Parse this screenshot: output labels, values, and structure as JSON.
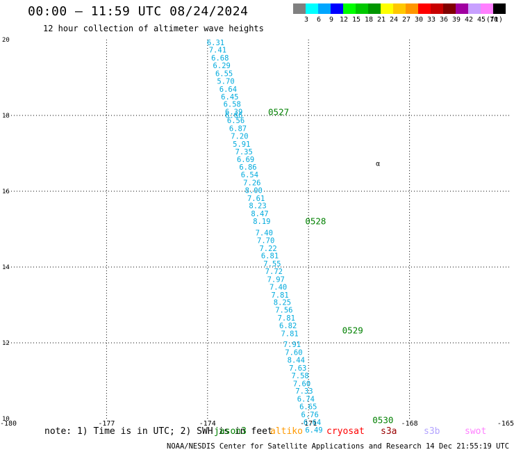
{
  "header": {
    "title": "00:00 – 11:59 UTC 08/24/2024",
    "subtitle": "12 hour collection of altimeter wave heights"
  },
  "colors": {
    "swh_label": "#00aadd",
    "time_label": "#008000",
    "grid": "#000000"
  },
  "color_scale": {
    "unit": "(ft)",
    "bins": [
      {
        "label": "3",
        "color": "#808080"
      },
      {
        "label": "6",
        "color": "#00ffff"
      },
      {
        "label": "9",
        "color": "#00a6ff"
      },
      {
        "label": "12",
        "color": "#0000ff"
      },
      {
        "label": "15",
        "color": "#00ff00"
      },
      {
        "label": "18",
        "color": "#00c800"
      },
      {
        "label": "21",
        "color": "#009600"
      },
      {
        "label": "24",
        "color": "#ffff00"
      },
      {
        "label": "27",
        "color": "#ffc800"
      },
      {
        "label": "30",
        "color": "#ff9600"
      },
      {
        "label": "33",
        "color": "#ff0000"
      },
      {
        "label": "36",
        "color": "#c80000"
      },
      {
        "label": "39",
        "color": "#800000"
      },
      {
        "label": "42",
        "color": "#a000a0"
      },
      {
        "label": "45",
        "color": "#c8a0ff"
      },
      {
        "label": "70",
        "color": "#ff80ff"
      },
      {
        "label": "",
        "color": "#000000"
      }
    ]
  },
  "chart_data": {
    "type": "scatter",
    "xlim": [
      -180,
      -165
    ],
    "ylim": [
      10,
      20
    ],
    "xticks": [
      "-180",
      "-177",
      "-174",
      "-171",
      "-168",
      "-165"
    ],
    "xtick_values": [
      -180,
      -177,
      -174,
      -171,
      -168,
      -165
    ],
    "yticks": [
      "10",
      "12",
      "14",
      "16",
      "18",
      "20"
    ],
    "ytick_values": [
      10,
      12,
      14,
      16,
      18,
      20
    ],
    "grid": true,
    "swh_points": [
      {
        "lon": -174.02,
        "lat": 19.93,
        "label": "6.31"
      },
      {
        "lon": -173.96,
        "lat": 19.73,
        "label": "7.41"
      },
      {
        "lon": -173.89,
        "lat": 19.52,
        "label": "6.68"
      },
      {
        "lon": -173.84,
        "lat": 19.32,
        "label": "6.29"
      },
      {
        "lon": -173.77,
        "lat": 19.11,
        "label": "6.55"
      },
      {
        "lon": -173.72,
        "lat": 18.91,
        "label": "5.70"
      },
      {
        "lon": -173.65,
        "lat": 18.7,
        "label": "6.64"
      },
      {
        "lon": -173.6,
        "lat": 18.5,
        "label": "6.45"
      },
      {
        "lon": -173.53,
        "lat": 18.3,
        "label": "6.58"
      },
      {
        "lon": -173.48,
        "lat": 18.1,
        "label": "6.39"
      },
      {
        "lon": -173.48,
        "lat": 18.01,
        "label": "6.66"
      },
      {
        "lon": -173.42,
        "lat": 17.87,
        "label": "6.56"
      },
      {
        "lon": -173.36,
        "lat": 17.66,
        "label": "6.87"
      },
      {
        "lon": -173.31,
        "lat": 17.46,
        "label": "7.20"
      },
      {
        "lon": -173.25,
        "lat": 17.25,
        "label": "5.91"
      },
      {
        "lon": -173.18,
        "lat": 17.05,
        "label": "7.35"
      },
      {
        "lon": -173.13,
        "lat": 16.84,
        "label": "6.69"
      },
      {
        "lon": -173.06,
        "lat": 16.64,
        "label": "6.86"
      },
      {
        "lon": -173.01,
        "lat": 16.44,
        "label": "6.54"
      },
      {
        "lon": -172.94,
        "lat": 16.23,
        "label": "7.26"
      },
      {
        "lon": -172.89,
        "lat": 16.03,
        "label": "8.00"
      },
      {
        "lon": -172.82,
        "lat": 15.82,
        "label": "7.61"
      },
      {
        "lon": -172.77,
        "lat": 15.62,
        "label": "8.23"
      },
      {
        "lon": -172.71,
        "lat": 15.41,
        "label": "8.47"
      },
      {
        "lon": -172.65,
        "lat": 15.21,
        "label": "8.19"
      },
      {
        "lon": -172.58,
        "lat": 14.91,
        "label": "7.40"
      },
      {
        "lon": -172.53,
        "lat": 14.71,
        "label": "7.70"
      },
      {
        "lon": -172.46,
        "lat": 14.5,
        "label": "7.22"
      },
      {
        "lon": -172.41,
        "lat": 14.3,
        "label": "6.81"
      },
      {
        "lon": -172.34,
        "lat": 14.09,
        "label": "7.55"
      },
      {
        "lon": -172.29,
        "lat": 13.89,
        "label": "7.72"
      },
      {
        "lon": -172.23,
        "lat": 13.68,
        "label": "7.97"
      },
      {
        "lon": -172.16,
        "lat": 13.48,
        "label": "7.40"
      },
      {
        "lon": -172.11,
        "lat": 13.27,
        "label": "7.81"
      },
      {
        "lon": -172.04,
        "lat": 13.07,
        "label": "8.25"
      },
      {
        "lon": -171.99,
        "lat": 12.87,
        "label": "7.56"
      },
      {
        "lon": -171.92,
        "lat": 12.66,
        "label": "7.81"
      },
      {
        "lon": -171.87,
        "lat": 12.46,
        "label": "6.82"
      },
      {
        "lon": -171.82,
        "lat": 12.25,
        "label": "7.81"
      },
      {
        "lon": -171.75,
        "lat": 11.96,
        "label": "7.91"
      },
      {
        "lon": -171.7,
        "lat": 11.75,
        "label": "7.60"
      },
      {
        "lon": -171.63,
        "lat": 11.55,
        "label": "8.44"
      },
      {
        "lon": -171.58,
        "lat": 11.34,
        "label": "7.63"
      },
      {
        "lon": -171.51,
        "lat": 11.14,
        "label": "7.58"
      },
      {
        "lon": -171.46,
        "lat": 10.93,
        "label": "7.60"
      },
      {
        "lon": -171.39,
        "lat": 10.73,
        "label": "7.33"
      },
      {
        "lon": -171.34,
        "lat": 10.52,
        "label": "6.74"
      },
      {
        "lon": -171.27,
        "lat": 10.32,
        "label": "6.65"
      },
      {
        "lon": -171.22,
        "lat": 10.11,
        "label": "6.76"
      },
      {
        "lon": -171.15,
        "lat": 9.91,
        "label": "6.64"
      },
      {
        "lon": -171.1,
        "lat": 9.71,
        "label": "6.49"
      }
    ],
    "time_labels": [
      {
        "lon": -172.2,
        "lat": 18.1,
        "label": "0527"
      },
      {
        "lon": -171.1,
        "lat": 15.22,
        "label": "0528"
      },
      {
        "lon": -170.0,
        "lat": 12.34,
        "label": "0529"
      },
      {
        "lon": -169.1,
        "lat": 9.97,
        "label": "0530"
      }
    ],
    "marker": {
      "lon": -169.0,
      "lat": 16.74,
      "label": "α"
    }
  },
  "footer": {
    "note": "note: 1) Time is in UTC; 2) SWH is in feet",
    "satellites": [
      {
        "name": "jason3",
        "color": "#008000"
      },
      {
        "name": "altiko",
        "color": "#ff9900"
      },
      {
        "name": "cryosat",
        "color": "#ff0000"
      },
      {
        "name": "s3a",
        "color": "#990000"
      },
      {
        "name": "s3b",
        "color": "#b3a3ff"
      },
      {
        "name": "swot",
        "color": "#ff80ff"
      }
    ],
    "credit": "NOAA/NESDIS Center for Satellite Applications and Research    14 Dec 21:55:19 UTC 2024"
  }
}
